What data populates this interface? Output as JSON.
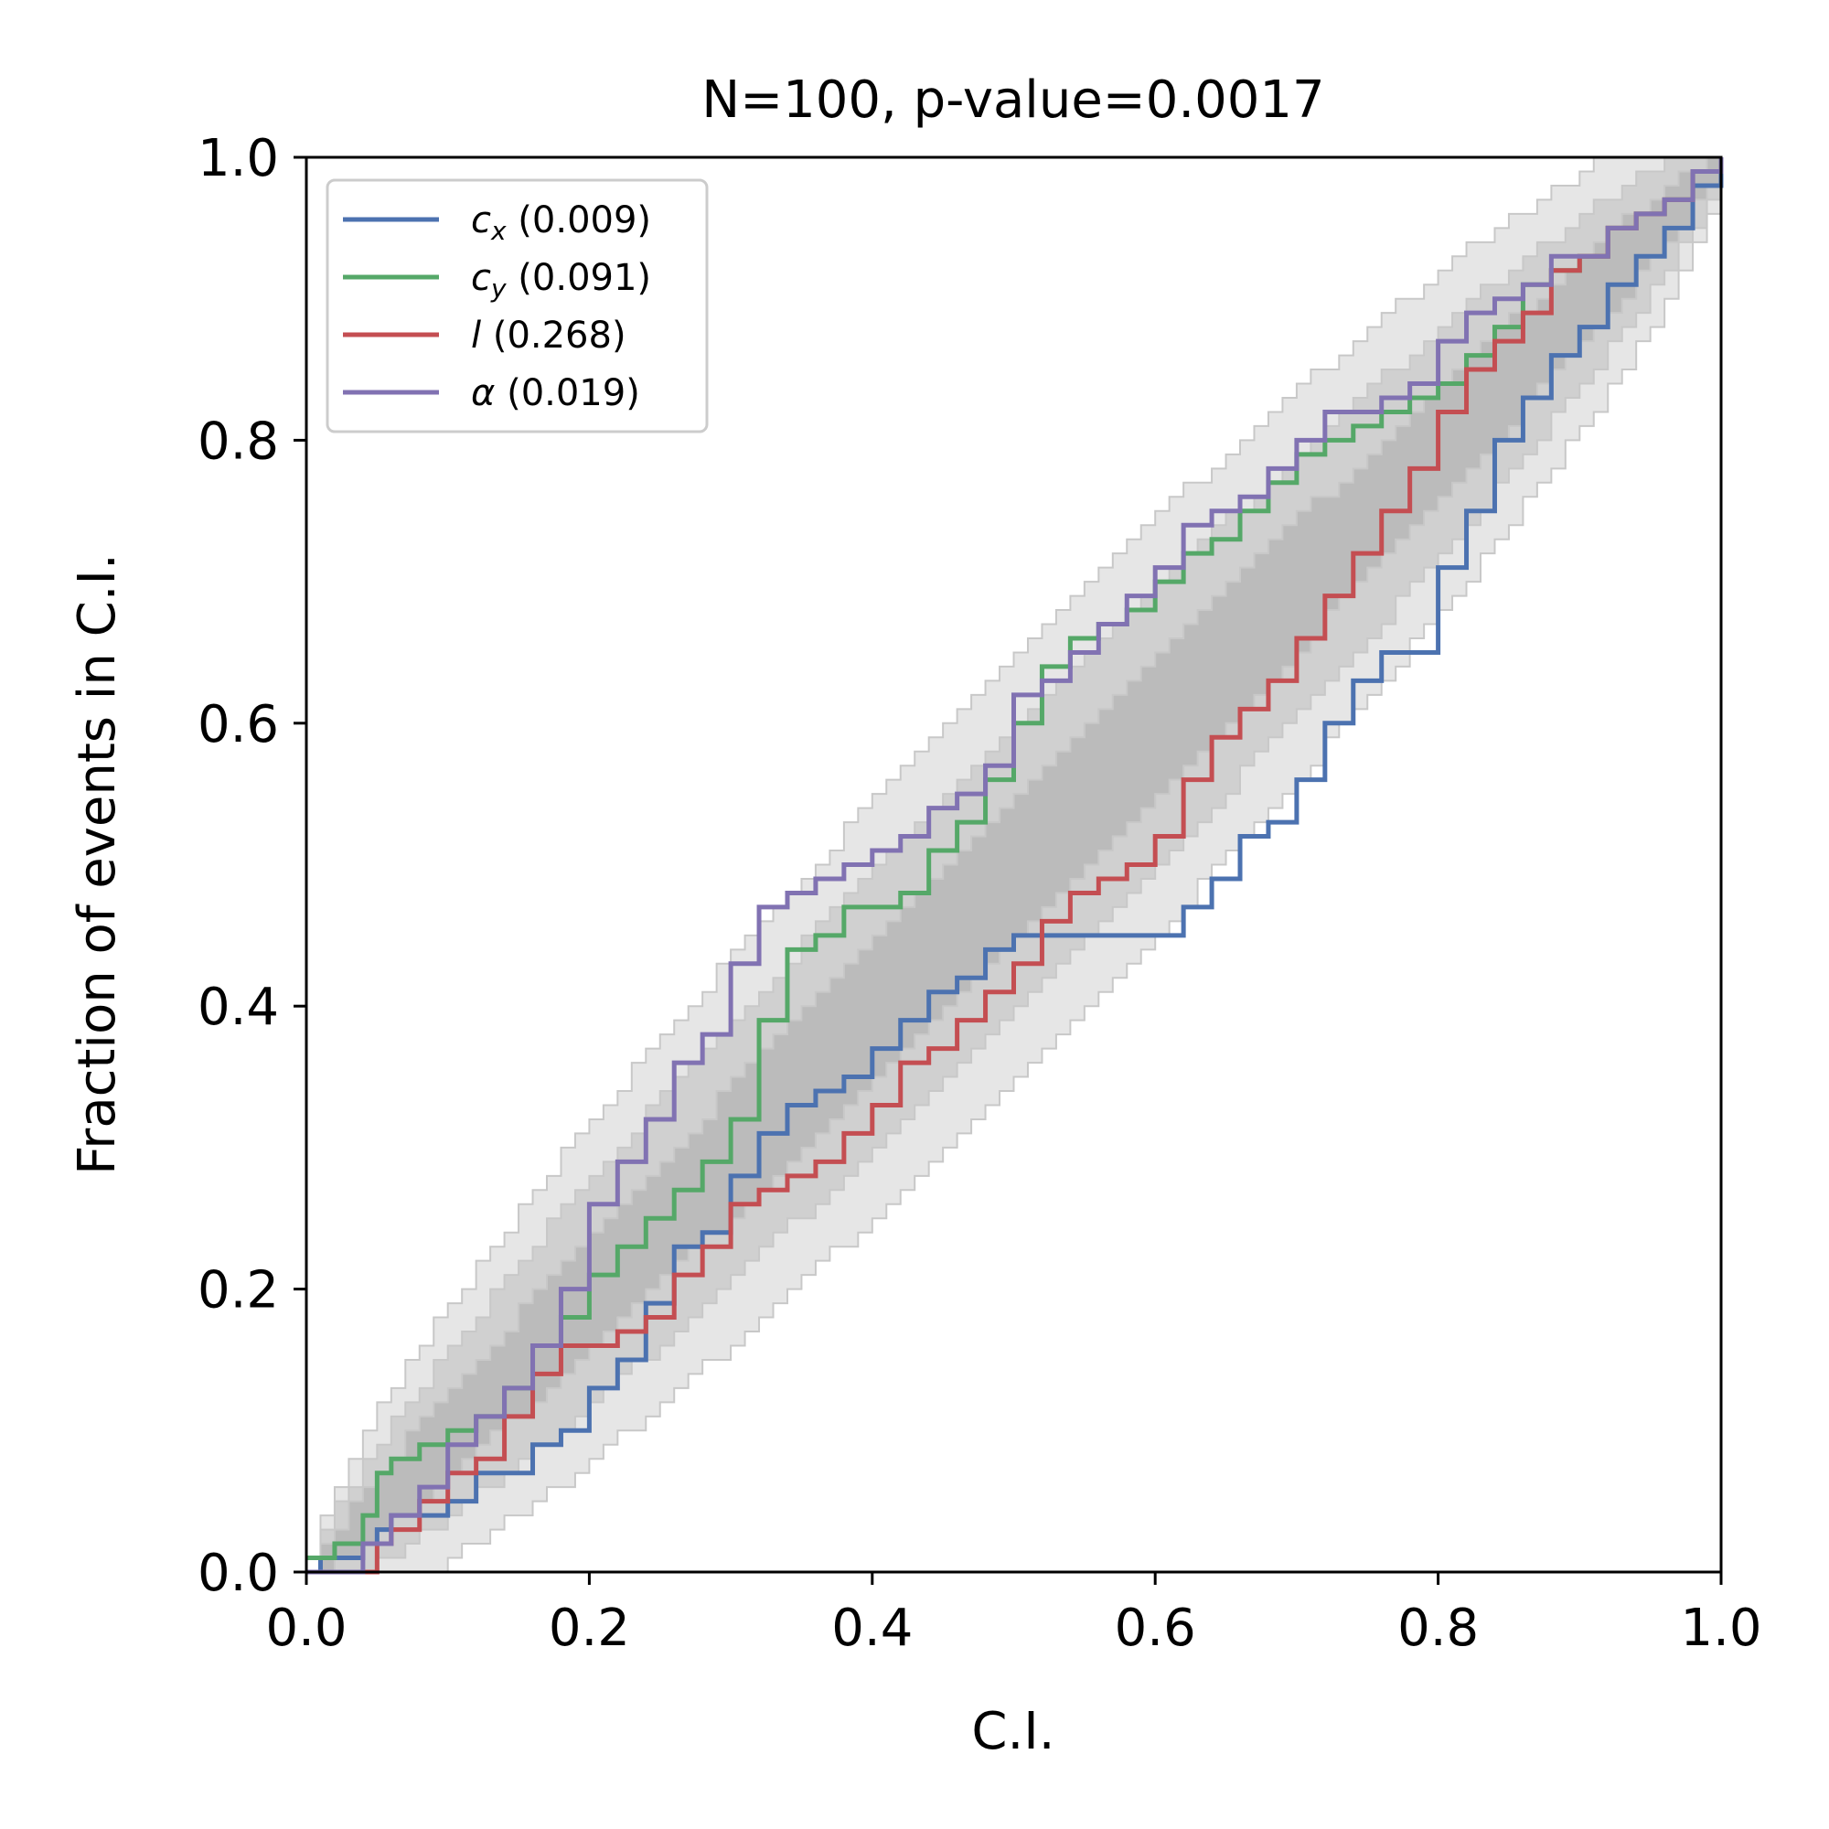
{
  "chart_data": {
    "type": "line",
    "title": "N=100, p-value=0.0017",
    "xlabel": "C.I.",
    "ylabel": "Fraction of events in C.I.",
    "xlim": [
      0,
      1
    ],
    "ylim": [
      0,
      1
    ],
    "xticks": [
      0,
      0.2,
      0.4,
      0.6,
      0.8,
      1.0
    ],
    "xtick_labels": [
      "0.0",
      "0.2",
      "0.4",
      "0.6",
      "0.8",
      "1.0"
    ],
    "yticks": [
      0,
      0.2,
      0.4,
      0.6,
      0.8,
      1.0
    ],
    "ytick_labels": [
      "0.0",
      "0.2",
      "0.4",
      "0.6",
      "0.8",
      "1.0"
    ],
    "grid": false,
    "legend_position": "top-left",
    "confidence_bands": [
      {
        "level": "1-sigma",
        "color": "#bbbbbb"
      },
      {
        "level": "2-sigma",
        "color": "#d0d0d0"
      },
      {
        "level": "3-sigma",
        "color": "#e6e6e6"
      }
    ],
    "series": [
      {
        "name": "c_x",
        "label_var": "c",
        "label_sub": "x",
        "label_value": "(0.009)",
        "color": "#4c72b0",
        "x": [
          0,
          0.01,
          0.02,
          0.04,
          0.05,
          0.06,
          0.08,
          0.1,
          0.12,
          0.14,
          0.16,
          0.18,
          0.2,
          0.22,
          0.24,
          0.26,
          0.28,
          0.3,
          0.32,
          0.34,
          0.36,
          0.38,
          0.4,
          0.42,
          0.44,
          0.46,
          0.48,
          0.5,
          0.52,
          0.6,
          0.62,
          0.64,
          0.66,
          0.68,
          0.7,
          0.72,
          0.74,
          0.76,
          0.78,
          0.8,
          0.82,
          0.84,
          0.86,
          0.88,
          0.9,
          0.92,
          0.94,
          0.96,
          0.98,
          1.0
        ],
        "y": [
          0,
          0.01,
          0.01,
          0.02,
          0.03,
          0.04,
          0.04,
          0.05,
          0.07,
          0.07,
          0.09,
          0.1,
          0.13,
          0.15,
          0.19,
          0.23,
          0.24,
          0.28,
          0.31,
          0.33,
          0.34,
          0.35,
          0.37,
          0.39,
          0.41,
          0.42,
          0.44,
          0.45,
          0.45,
          0.45,
          0.47,
          0.49,
          0.52,
          0.53,
          0.56,
          0.6,
          0.63,
          0.65,
          0.65,
          0.71,
          0.75,
          0.8,
          0.83,
          0.86,
          0.88,
          0.91,
          0.93,
          0.95,
          0.98,
          1.0
        ]
      },
      {
        "name": "c_y",
        "label_var": "c",
        "label_sub": "y",
        "label_value": "(0.091)",
        "color": "#55a868",
        "x": [
          0,
          0.01,
          0.02,
          0.04,
          0.05,
          0.06,
          0.08,
          0.1,
          0.12,
          0.14,
          0.16,
          0.18,
          0.2,
          0.22,
          0.24,
          0.26,
          0.28,
          0.3,
          0.32,
          0.34,
          0.36,
          0.38,
          0.4,
          0.42,
          0.44,
          0.46,
          0.48,
          0.5,
          0.52,
          0.54,
          0.56,
          0.58,
          0.6,
          0.62,
          0.64,
          0.66,
          0.68,
          0.7,
          0.72,
          0.74,
          0.76,
          0.78,
          0.8,
          0.82,
          0.84,
          0.86,
          0.88,
          0.9,
          0.92,
          0.94,
          0.96,
          0.98,
          1.0
        ],
        "y": [
          0.01,
          0.01,
          0.02,
          0.04,
          0.07,
          0.08,
          0.09,
          0.1,
          0.11,
          0.13,
          0.16,
          0.18,
          0.21,
          0.23,
          0.25,
          0.27,
          0.29,
          0.32,
          0.39,
          0.44,
          0.45,
          0.47,
          0.47,
          0.48,
          0.51,
          0.53,
          0.56,
          0.6,
          0.64,
          0.66,
          0.67,
          0.68,
          0.7,
          0.72,
          0.73,
          0.75,
          0.77,
          0.79,
          0.8,
          0.81,
          0.82,
          0.83,
          0.84,
          0.86,
          0.88,
          0.91,
          0.92,
          0.93,
          0.95,
          0.96,
          0.97,
          0.99,
          1.0
        ]
      },
      {
        "name": "l",
        "label_var": "l",
        "label_sub": "",
        "label_value": "(0.268)",
        "color": "#c44e52",
        "x": [
          0,
          0.02,
          0.04,
          0.05,
          0.06,
          0.08,
          0.1,
          0.12,
          0.14,
          0.16,
          0.18,
          0.2,
          0.22,
          0.24,
          0.26,
          0.28,
          0.3,
          0.32,
          0.34,
          0.36,
          0.38,
          0.4,
          0.42,
          0.44,
          0.46,
          0.48,
          0.5,
          0.52,
          0.54,
          0.56,
          0.58,
          0.6,
          0.62,
          0.64,
          0.66,
          0.68,
          0.7,
          0.72,
          0.74,
          0.76,
          0.78,
          0.8,
          0.82,
          0.84,
          0.86,
          0.88,
          0.9,
          0.92,
          0.94,
          0.96,
          0.98,
          1.0
        ],
        "y": [
          0,
          0,
          0,
          0.02,
          0.03,
          0.05,
          0.07,
          0.08,
          0.11,
          0.14,
          0.16,
          0.16,
          0.17,
          0.18,
          0.21,
          0.23,
          0.26,
          0.27,
          0.28,
          0.29,
          0.31,
          0.33,
          0.36,
          0.37,
          0.39,
          0.41,
          0.43,
          0.46,
          0.48,
          0.49,
          0.5,
          0.52,
          0.56,
          0.59,
          0.61,
          0.63,
          0.66,
          0.69,
          0.72,
          0.75,
          0.78,
          0.82,
          0.85,
          0.87,
          0.89,
          0.92,
          0.93,
          0.95,
          0.96,
          0.97,
          0.99,
          1.0
        ]
      },
      {
        "name": "alpha",
        "label_var": "α",
        "label_sub": "",
        "label_value": "(0.019)",
        "color": "#8172b2",
        "x": [
          0,
          0.02,
          0.04,
          0.06,
          0.08,
          0.1,
          0.12,
          0.14,
          0.16,
          0.18,
          0.2,
          0.22,
          0.24,
          0.26,
          0.28,
          0.3,
          0.32,
          0.34,
          0.36,
          0.38,
          0.4,
          0.42,
          0.44,
          0.46,
          0.48,
          0.5,
          0.52,
          0.54,
          0.56,
          0.58,
          0.6,
          0.62,
          0.64,
          0.66,
          0.68,
          0.7,
          0.72,
          0.74,
          0.76,
          0.78,
          0.8,
          0.82,
          0.84,
          0.86,
          0.88,
          0.9,
          0.92,
          0.94,
          0.96,
          0.98,
          1.0
        ],
        "y": [
          0,
          0,
          0.02,
          0.04,
          0.06,
          0.09,
          0.11,
          0.13,
          0.16,
          0.2,
          0.26,
          0.29,
          0.32,
          0.36,
          0.38,
          0.43,
          0.47,
          0.48,
          0.49,
          0.5,
          0.51,
          0.52,
          0.54,
          0.55,
          0.57,
          0.62,
          0.63,
          0.65,
          0.67,
          0.69,
          0.71,
          0.74,
          0.75,
          0.76,
          0.78,
          0.8,
          0.82,
          0.82,
          0.83,
          0.84,
          0.87,
          0.89,
          0.9,
          0.91,
          0.93,
          0.93,
          0.95,
          0.96,
          0.97,
          0.99,
          1.0
        ]
      }
    ]
  }
}
